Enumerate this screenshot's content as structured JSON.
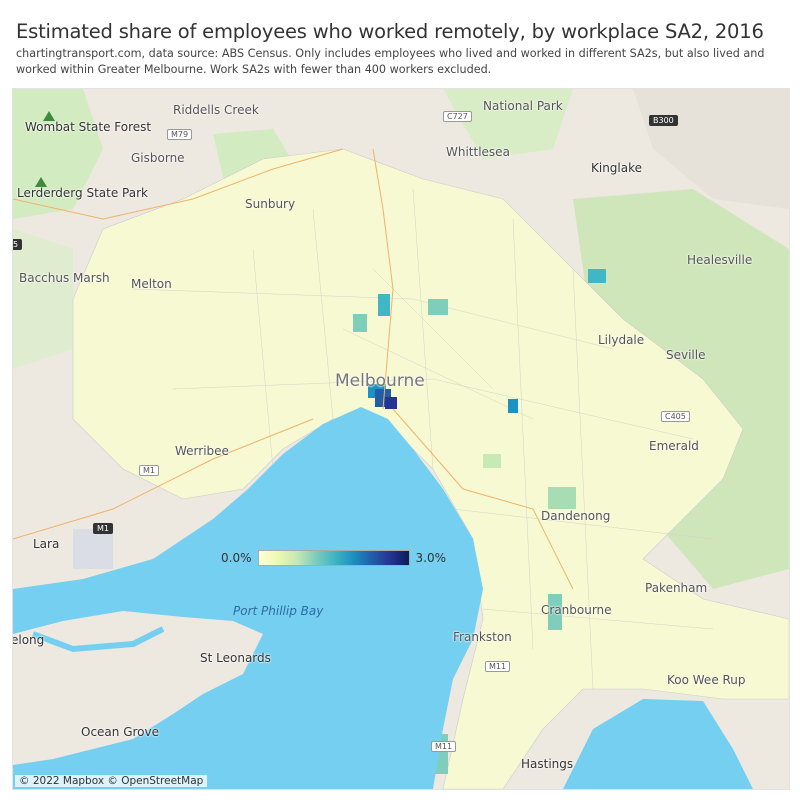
{
  "header": {
    "title": "Estimated share of employees who worked remotely, by workplace SA2, 2016",
    "subtitle": "chartingtransport.com, data source: ABS Census. Only includes employees who lived and worked in different SA2s, but also lived and worked within Greater Melbourne. Work SA2s with fewer than 400 workers excluded."
  },
  "map": {
    "colors": {
      "land": "#ede9e1",
      "water": "#75cff0",
      "park": "#d3ebc0",
      "low": "#ffffd9",
      "high": "#081d58"
    },
    "places": {
      "riddells_creek": "Riddells Creek",
      "wombat": "Wombat State Forest",
      "gisborne": "Gisborne",
      "whittlesea": "Whittlesea",
      "kinglake": "Kinglake",
      "kinglake_np": "National Park",
      "lerderderg": "Lerderderg State Park",
      "sunbury": "Sunbury",
      "healesville": "Healesville",
      "bacchus_marsh": "Bacchus Marsh",
      "melton": "Melton",
      "lilydale": "Lilydale",
      "seville": "Seville",
      "melbourne": "Melbourne",
      "werribee": "Werribee",
      "emerald": "Emerald",
      "dandenong": "Dandenong",
      "lara": "Lara",
      "pakenham": "Pakenham",
      "port_phillip_bay": "Port Phillip Bay",
      "cranbourne": "Cranbourne",
      "geelong": "elong",
      "frankston": "Frankston",
      "st_leonards": "St Leonards",
      "koo_wee_rup": "Koo Wee Rup",
      "ocean_grove": "Ocean Grove",
      "hastings": "Hastings"
    },
    "roads": {
      "m79": "M79",
      "c727": "C727",
      "b300": "B300",
      "m1_west": "M1",
      "m1_lara": "M1",
      "c405": "C405",
      "m11": "M11",
      "m11_south": "M11",
      "edge": "5"
    },
    "legend": {
      "min_label": "0.0%",
      "max_label": "3.0%",
      "min": 0.0,
      "max": 3.0
    },
    "attribution": "© 2022 Mapbox © OpenStreetMap"
  }
}
